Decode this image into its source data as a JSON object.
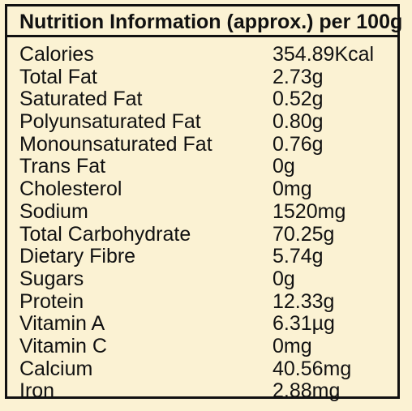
{
  "title": "Nutrition Information (approx.) per 100g",
  "nutrients": [
    {
      "label": "Calories",
      "value": "354.89Kcal"
    },
    {
      "label": "Total Fat",
      "value": "2.73g"
    },
    {
      "label": "Saturated Fat",
      "value": "0.52g"
    },
    {
      "label": "Polyunsaturated Fat",
      "value": "0.80g"
    },
    {
      "label": "Monounsaturated Fat",
      "value": "0.76g"
    },
    {
      "label": "Trans Fat",
      "value": "0g"
    },
    {
      "label": "Cholesterol",
      "value": "0mg"
    },
    {
      "label": "Sodium",
      "value": "1520mg"
    },
    {
      "label": "Total Carbohydrate",
      "value": "70.25g"
    },
    {
      "label": "Dietary Fibre",
      "value": "5.74g"
    },
    {
      "label": "Sugars",
      "value": "0g"
    },
    {
      "label": "Protein",
      "value": "12.33g"
    },
    {
      "label": "Vitamin A",
      "value": "6.31µg"
    },
    {
      "label": "Vitamin C",
      "value": "0mg"
    },
    {
      "label": "Calcium",
      "value": "40.56mg"
    },
    {
      "label": "Iron",
      "value": "2.88mg"
    }
  ]
}
